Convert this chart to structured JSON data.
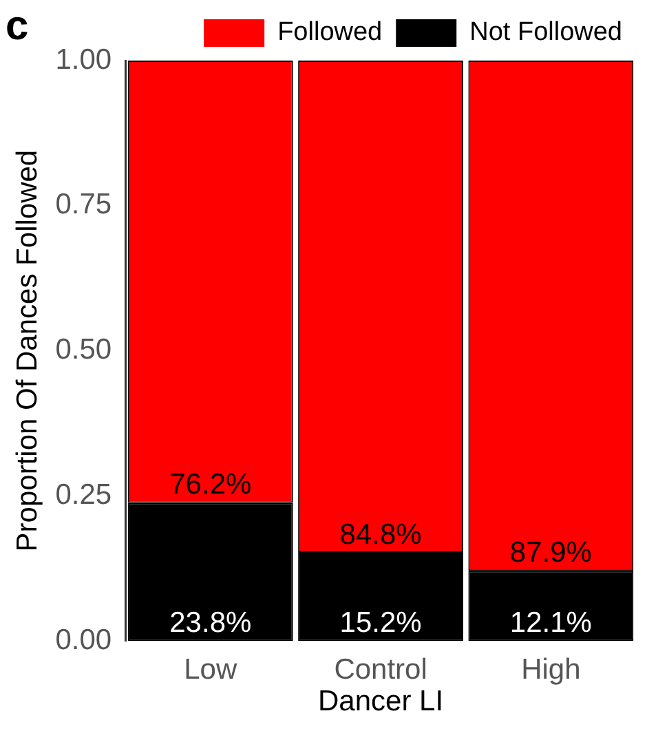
{
  "chart_data": {
    "type": "bar",
    "title": "c",
    "xlabel": "Dancer LI",
    "ylabel": "Proportion Of Dances Followed",
    "categories": [
      "Low",
      "Control",
      "High"
    ],
    "stacked": true,
    "series": [
      {
        "name": "Not Followed",
        "color": "#000000",
        "values": [
          0.238,
          0.152,
          0.121
        ],
        "value_labels": [
          "23.8%",
          "15.2%",
          "12.1%"
        ]
      },
      {
        "name": "Followed",
        "color": "#ff0000",
        "values": [
          0.762,
          0.848,
          0.879
        ],
        "value_labels": [
          "76.2%",
          "84.8%",
          "87.9%"
        ]
      }
    ],
    "ylim": [
      0,
      1
    ],
    "yticks": [
      {
        "value": 0,
        "label": "0.00"
      },
      {
        "value": 0.25,
        "label": "0.25"
      },
      {
        "value": 0.5,
        "label": "0.50"
      },
      {
        "value": 0.75,
        "label": "0.75"
      },
      {
        "value": 1,
        "label": "1.00"
      }
    ],
    "grid": false,
    "legend": "top right"
  }
}
